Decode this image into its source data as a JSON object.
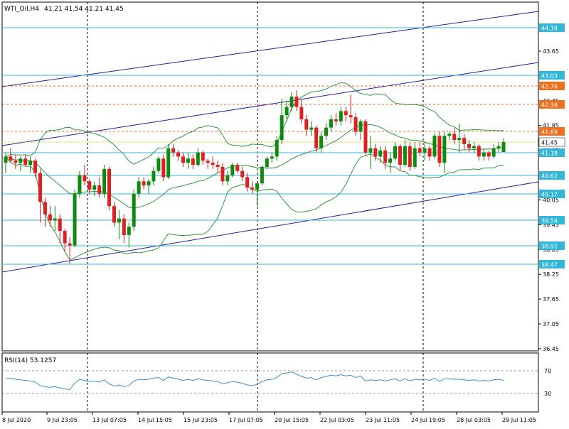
{
  "header": {
    "symbol": "WTI_Oil,H4",
    "quote": "41.21 41.54 41.21 41.45"
  },
  "rsi_panel": {
    "label": "RSI(14) 53.1257"
  },
  "colors": {
    "bull": "#0e8a0e",
    "bear": "#e02020",
    "channel": "#1e1ea8",
    "level_line": "#33b7d9",
    "level_label": "#33b7d9",
    "dashed_level": "#e46a2a",
    "dashed_label": "#f07020",
    "bollinger": "#2f9a3f",
    "rsi_line": "#3a8fd0",
    "grid": "#000000",
    "last_price": "#d9d900"
  },
  "chart_data": [
    {
      "type": "candlestick",
      "title": "WTI_Oil,H4",
      "x_tick_labels": [
        "8 Jul 2020",
        "9 Jul 23:05",
        "13 Jul 07:05",
        "14 Jul 15:05",
        "15 Jul 23:05",
        "17 Jul 07:05",
        "20 Jul 15:05",
        "22 Jul 03:05",
        "23 Jul 11:05",
        "24 Jul 19:05",
        "28 Jul 03:05",
        "29 Jul 11:05"
      ],
      "y_tick_labels": [
        "43.65",
        "43.05",
        "42.45",
        "41.85",
        "41.25",
        "40.65",
        "40.05",
        "39.45",
        "38.85",
        "38.25",
        "37.65",
        "37.05",
        "36.45"
      ],
      "ylim": [
        36.45,
        44.55
      ],
      "price_levels": {
        "solid": [
          44.18,
          43.03,
          41.18,
          40.62,
          40.17,
          39.54,
          38.92,
          38.47
        ],
        "dashed": [
          42.76,
          42.34,
          41.69
        ],
        "current": 41.45
      },
      "candles": [
        [
          40.95,
          41.2,
          40.7,
          41.1
        ],
        [
          41.1,
          41.3,
          40.95,
          41.0
        ],
        [
          41.0,
          41.15,
          40.8,
          40.95
        ],
        [
          40.95,
          41.1,
          40.75,
          41.05
        ],
        [
          41.05,
          41.15,
          40.85,
          40.9
        ],
        [
          40.9,
          41.1,
          40.7,
          41.0
        ],
        [
          41.0,
          41.05,
          40.6,
          40.7
        ],
        [
          40.7,
          40.8,
          39.5,
          40.0
        ],
        [
          40.0,
          40.1,
          39.4,
          39.7
        ],
        [
          39.7,
          39.9,
          39.4,
          39.55
        ],
        [
          39.55,
          39.9,
          39.3,
          39.6
        ],
        [
          39.6,
          39.7,
          39.0,
          39.3
        ],
        [
          39.3,
          39.35,
          38.8,
          39.0
        ],
        [
          39.0,
          39.15,
          38.5,
          38.95
        ],
        [
          38.95,
          40.3,
          38.9,
          40.2
        ],
        [
          40.2,
          40.75,
          40.1,
          40.65
        ],
        [
          40.65,
          40.9,
          40.4,
          40.5
        ],
        [
          40.5,
          40.55,
          40.2,
          40.3
        ],
        [
          40.3,
          40.5,
          40.15,
          40.4
        ],
        [
          40.4,
          40.6,
          40.1,
          40.2
        ],
        [
          40.2,
          40.9,
          40.1,
          40.8
        ],
        [
          40.8,
          40.85,
          39.8,
          39.9
        ],
        [
          39.9,
          40.0,
          39.4,
          39.5
        ],
        [
          39.5,
          39.8,
          39.1,
          39.6
        ],
        [
          39.6,
          39.7,
          39.0,
          39.2
        ],
        [
          39.2,
          39.5,
          38.9,
          39.4
        ],
        [
          39.4,
          40.3,
          39.3,
          40.2
        ],
        [
          40.2,
          40.6,
          40.1,
          40.5
        ],
        [
          40.5,
          40.6,
          40.3,
          40.4
        ],
        [
          40.4,
          40.55,
          40.2,
          40.5
        ],
        [
          40.5,
          40.85,
          40.4,
          40.75
        ],
        [
          40.75,
          41.1,
          40.7,
          41.05
        ],
        [
          41.05,
          41.15,
          40.5,
          40.6
        ],
        [
          40.6,
          41.4,
          40.55,
          41.3
        ],
        [
          41.3,
          41.4,
          41.1,
          41.2
        ],
        [
          41.2,
          41.25,
          41.0,
          41.1
        ],
        [
          41.1,
          41.2,
          40.85,
          40.95
        ],
        [
          40.95,
          41.2,
          40.8,
          41.05
        ],
        [
          41.05,
          41.15,
          40.8,
          40.9
        ],
        [
          40.9,
          41.3,
          40.85,
          41.2
        ],
        [
          41.2,
          41.25,
          40.9,
          41.0
        ],
        [
          41.0,
          41.05,
          40.8,
          40.95
        ],
        [
          40.95,
          41.1,
          40.8,
          40.9
        ],
        [
          40.9,
          41.0,
          40.7,
          40.85
        ],
        [
          40.85,
          40.95,
          40.4,
          40.5
        ],
        [
          40.5,
          40.75,
          40.4,
          40.65
        ],
        [
          40.65,
          40.95,
          40.6,
          40.9
        ],
        [
          40.9,
          40.95,
          40.7,
          40.75
        ],
        [
          40.75,
          40.85,
          40.5,
          40.6
        ],
        [
          40.6,
          40.7,
          40.25,
          40.35
        ],
        [
          40.35,
          40.5,
          40.2,
          40.3
        ],
        [
          40.3,
          40.5,
          39.9,
          40.45
        ],
        [
          40.45,
          40.9,
          40.4,
          40.85
        ],
        [
          40.85,
          41.1,
          40.8,
          41.05
        ],
        [
          41.05,
          41.2,
          40.95,
          41.1
        ],
        [
          41.1,
          41.6,
          41.0,
          41.5
        ],
        [
          41.5,
          42.5,
          41.4,
          42.1
        ],
        [
          42.1,
          42.45,
          42.0,
          42.3
        ],
        [
          42.3,
          42.65,
          42.2,
          42.55
        ],
        [
          42.55,
          42.7,
          42.2,
          42.3
        ],
        [
          42.3,
          42.5,
          41.9,
          42.0
        ],
        [
          42.0,
          42.1,
          41.6,
          41.75
        ],
        [
          41.75,
          41.95,
          41.6,
          41.8
        ],
        [
          41.8,
          41.85,
          41.2,
          41.3
        ],
        [
          41.3,
          41.7,
          41.2,
          41.6
        ],
        [
          41.6,
          41.9,
          41.5,
          41.8
        ],
        [
          41.8,
          42.1,
          41.7,
          42.0
        ],
        [
          42.0,
          42.15,
          41.85,
          41.95
        ],
        [
          41.95,
          42.3,
          41.85,
          42.2
        ],
        [
          42.2,
          42.3,
          41.95,
          42.1
        ],
        [
          42.1,
          42.6,
          41.9,
          42.05
        ],
        [
          42.05,
          42.15,
          41.6,
          41.7
        ],
        [
          41.7,
          42.0,
          41.5,
          41.95
        ],
        [
          41.95,
          42.0,
          41.1,
          41.2
        ],
        [
          41.2,
          41.6,
          40.8,
          41.3
        ],
        [
          41.3,
          41.4,
          41.0,
          41.1
        ],
        [
          41.1,
          41.35,
          40.95,
          41.25
        ],
        [
          41.25,
          41.35,
          40.8,
          40.95
        ],
        [
          40.95,
          41.2,
          40.7,
          41.05
        ],
        [
          41.05,
          41.45,
          41.0,
          41.35
        ],
        [
          41.35,
          41.4,
          40.75,
          40.9
        ],
        [
          40.9,
          41.5,
          40.85,
          41.35
        ],
        [
          41.35,
          41.45,
          40.75,
          40.85
        ],
        [
          40.85,
          41.45,
          40.8,
          41.3
        ],
        [
          41.3,
          41.45,
          41.1,
          41.2
        ],
        [
          41.2,
          41.45,
          41.0,
          41.3
        ],
        [
          41.3,
          41.35,
          41.0,
          41.1
        ],
        [
          41.1,
          41.65,
          41.05,
          41.6
        ],
        [
          41.6,
          41.7,
          40.85,
          40.95
        ],
        [
          40.95,
          41.7,
          40.7,
          41.6
        ],
        [
          41.6,
          41.7,
          41.5,
          41.65
        ],
        [
          41.65,
          41.8,
          41.4,
          41.5
        ],
        [
          41.5,
          41.9,
          41.2,
          41.55
        ],
        [
          41.55,
          41.65,
          41.25,
          41.4
        ],
        [
          41.4,
          41.5,
          41.2,
          41.3
        ],
        [
          41.3,
          41.45,
          41.2,
          41.35
        ],
        [
          41.35,
          41.4,
          41.0,
          41.1
        ],
        [
          41.1,
          41.3,
          41.0,
          41.2
        ],
        [
          41.2,
          41.25,
          41.0,
          41.1
        ],
        [
          41.1,
          41.4,
          41.05,
          41.3
        ],
        [
          41.3,
          41.45,
          41.2,
          41.35
        ],
        [
          41.21,
          41.54,
          41.21,
          41.45
        ]
      ]
    },
    {
      "type": "line",
      "title": "RSI(14) 53.1257",
      "y_tick_labels": [
        "70",
        "30"
      ],
      "ylim": [
        0,
        100
      ],
      "values": [
        56,
        57,
        55,
        54,
        53,
        52,
        50,
        44,
        42,
        41,
        42,
        40,
        38,
        37,
        48,
        55,
        53,
        51,
        52,
        50,
        54,
        47,
        43,
        45,
        42,
        44,
        52,
        55,
        54,
        55,
        57,
        58,
        53,
        59,
        57,
        55,
        53,
        55,
        53,
        56,
        54,
        53,
        52,
        51,
        47,
        49,
        51,
        50,
        48,
        45,
        44,
        46,
        51,
        54,
        55,
        58,
        65,
        66,
        68,
        64,
        60,
        57,
        58,
        54,
        58,
        60,
        62,
        61,
        63,
        61,
        62,
        58,
        61,
        52,
        54,
        53,
        54,
        52,
        54,
        56,
        52,
        56,
        52,
        55,
        54,
        55,
        53,
        57,
        51,
        56,
        56,
        55,
        55,
        54,
        53,
        54,
        52,
        53,
        52,
        54,
        55,
        53
      ]
    }
  ]
}
